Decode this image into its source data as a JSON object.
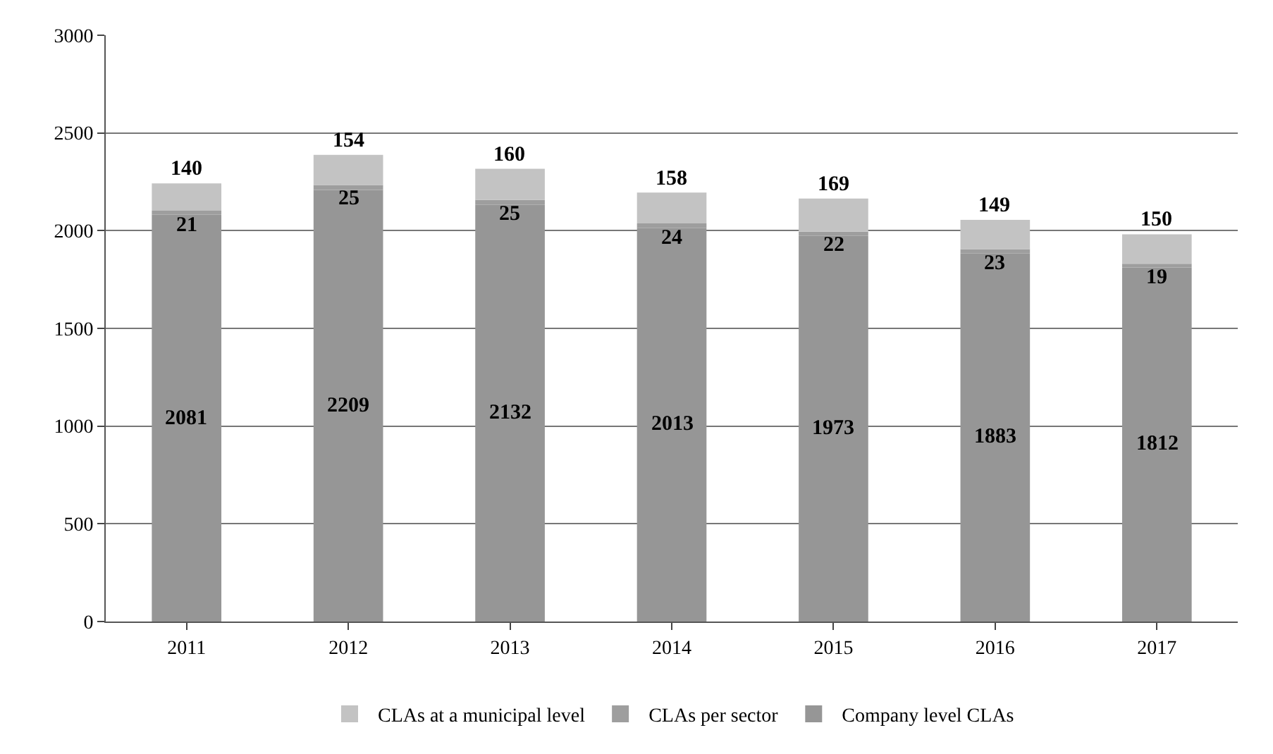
{
  "chart_data": {
    "type": "bar",
    "stacked": true,
    "categories": [
      "2011",
      "2012",
      "2013",
      "2014",
      "2015",
      "2016",
      "2017"
    ],
    "series": [
      {
        "name": "Company level CLAs",
        "color": "#969696",
        "values": [
          2081,
          2209,
          2132,
          2013,
          1973,
          1883,
          1812
        ]
      },
      {
        "name": "CLAs per sector",
        "color": "#9e9e9e",
        "values": [
          21,
          25,
          25,
          24,
          22,
          23,
          19
        ]
      },
      {
        "name": "CLAs at a municipal level",
        "color": "#c3c3c3",
        "values": [
          140,
          154,
          160,
          158,
          169,
          149,
          150
        ]
      }
    ],
    "ylim": [
      0,
      3000
    ],
    "yticks": [
      0,
      500,
      1000,
      1500,
      2000,
      2500,
      3000
    ],
    "grid": "y",
    "legend": "bottom",
    "data_labels": true
  }
}
